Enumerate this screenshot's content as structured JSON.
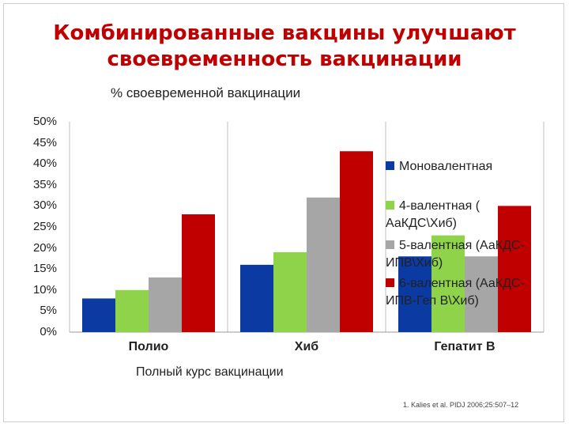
{
  "title_line1": "Комбинированные вакцины улучшают",
  "title_line2": "своевременность вакцинации",
  "source_note": "1. Kalies et al. PIDJ 2006;25:507–12",
  "chart_data": {
    "type": "bar",
    "ylabel": "% своевременной вакцинации",
    "xlabel": "Полный курс вакцинации",
    "ylim": [
      0,
      50
    ],
    "yticks": [
      "0%",
      "5%",
      "10%",
      "15%",
      "20%",
      "25%",
      "30%",
      "35%",
      "40%",
      "45%",
      "50%"
    ],
    "categories": [
      "Полио",
      "Хиб",
      "Гепатит B"
    ],
    "legend_position": "right",
    "series": [
      {
        "name": "Моновалентная",
        "color": "#0b3aa3",
        "values": [
          8,
          16,
          18
        ]
      },
      {
        "name": "4-валентная ( АаКДС\\Хиб)",
        "color": "#8ed34a",
        "values": [
          10,
          19,
          23
        ]
      },
      {
        "name": "5-валентная (АаКДС-ИПВ\\Хиб)",
        "color": "#a6a6a6",
        "values": [
          13,
          32,
          18
        ]
      },
      {
        "name": "6-валентная (АаКДС-ИПВ-Геп В\\Хиб)",
        "color": "#c00000",
        "values": [
          28,
          43,
          30
        ]
      }
    ]
  }
}
